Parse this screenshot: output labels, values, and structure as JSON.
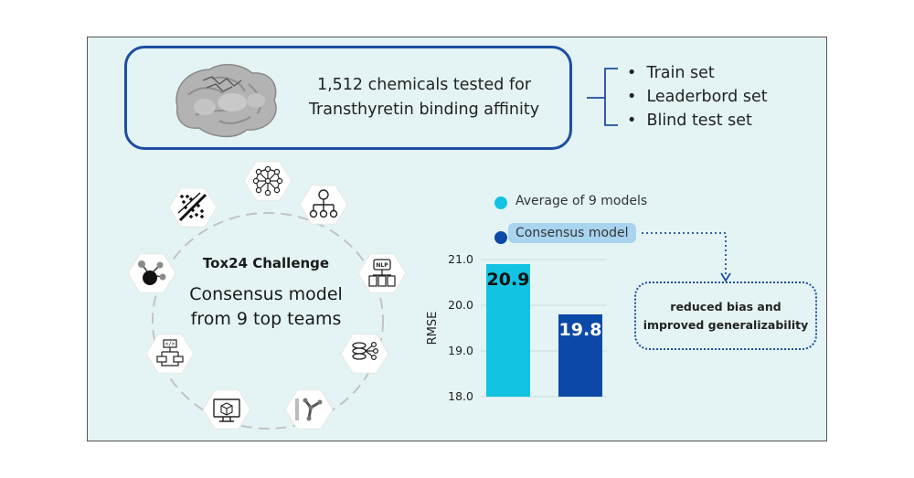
{
  "top": {
    "line1": "1,512 chemicals tested for",
    "line2": "Transthyretin binding affinity",
    "sets": [
      "Train set",
      "Leaderbord set",
      "Blind test set"
    ]
  },
  "center": {
    "title": "Tox24 Challenge",
    "line1": "Consensus model",
    "line2": "from 9 top teams"
  },
  "icons": [
    "neural-network-icon",
    "decision-tree-icon",
    "nlp-icon",
    "database-network-icon",
    "molecule-icon",
    "model-monitor-icon",
    "code-flowchart-icon",
    "node-graph-icon",
    "scatter-split-icon"
  ],
  "legend": {
    "average_label": "Average of 9 models",
    "consensus_label_a": "Consensus",
    "consensus_label_b": "model"
  },
  "note": {
    "line1": "reduced bias and",
    "line2": "improved generalizability"
  },
  "colors": {
    "average": "#12c3e2",
    "consensus": "#0b49a8",
    "frame": "#1d4ea1",
    "panel": "#e4f4f4"
  },
  "chart_data": {
    "type": "bar",
    "categories": [
      "Average of 9 models",
      "Consensus model"
    ],
    "values": [
      20.9,
      19.8
    ],
    "value_labels": [
      "20.9",
      "19.8"
    ],
    "ylabel": "RMSE",
    "ylim": [
      18.0,
      21.0
    ],
    "yticks": [
      "18.0",
      "19.0",
      "20.0",
      "21.0"
    ],
    "grid": true,
    "legend": "top"
  }
}
